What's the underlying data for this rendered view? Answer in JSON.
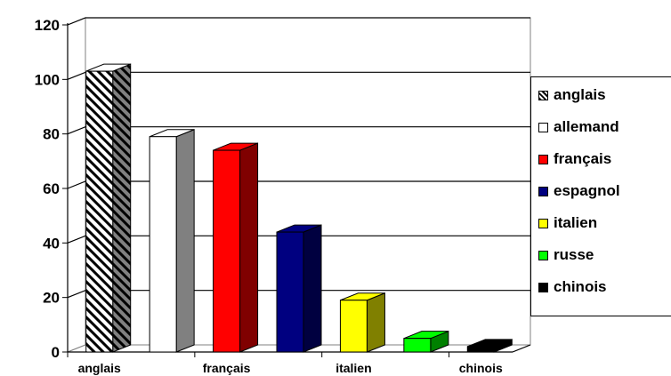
{
  "chart_data": {
    "type": "bar",
    "categories": [
      "anglais",
      "allemand",
      "français",
      "espagnol",
      "italien",
      "russe",
      "chinois"
    ],
    "values": [
      103,
      79,
      74,
      44,
      19,
      5,
      2
    ],
    "x_tick_labels": [
      "anglais",
      "français",
      "italien",
      "chinois"
    ],
    "ylim": [
      0,
      120
    ],
    "y_ticks": [
      0,
      20,
      40,
      60,
      80,
      100,
      120
    ],
    "y_tick_labels": [
      "0",
      "20",
      "40",
      "60",
      "80",
      "100",
      "120"
    ],
    "grid": true,
    "legend_position": "right",
    "colors": {
      "anglais": "#ffffff",
      "allemand": "#ffffff",
      "français": "#ff0000",
      "espagnol": "#000080",
      "italien": "#ffff00",
      "russe": "#00ff00",
      "chinois": "#000000"
    },
    "side_colors": {
      "anglais": "#808080",
      "allemand": "#808080",
      "français": "#800000",
      "espagnol": "#000040",
      "italien": "#808000",
      "russe": "#008000",
      "chinois": "#000000"
    },
    "patterns": {
      "anglais": "diagonal-hatch"
    },
    "legend": [
      "anglais",
      "allemand",
      "français",
      "espagnol",
      "italien",
      "russe",
      "chinois"
    ]
  }
}
